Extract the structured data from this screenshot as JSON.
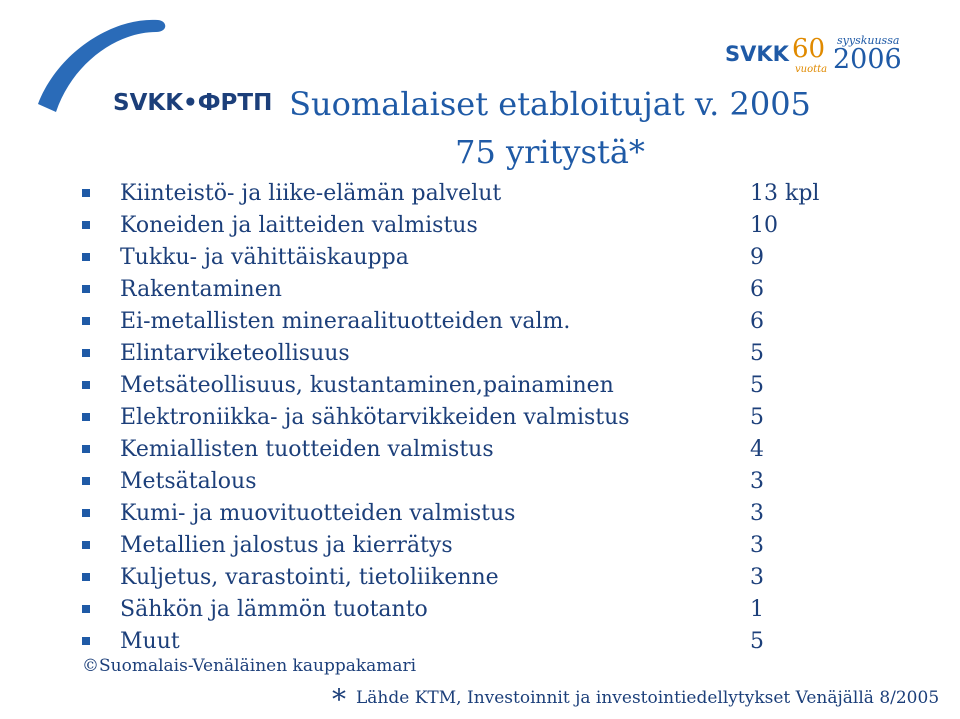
{
  "logos": {
    "left_text": "SVKK•ФРТП",
    "right_svkk": "SVKK",
    "right_60": "60",
    "right_vuotta": "vuotta",
    "right_syyskuussa": "syyskuussa",
    "right_year": "2006"
  },
  "title": {
    "line1": "Suomalaiset etabloitujat v. 2005",
    "line2": "75 yritystä*"
  },
  "items": [
    {
      "label": "Kiinteistö- ja liike-elämän palvelut",
      "count": "13 kpl"
    },
    {
      "label": "Koneiden ja laitteiden valmistus",
      "count": "10"
    },
    {
      "label": "Tukku- ja vähittäiskauppa",
      "count": "9"
    },
    {
      "label": "Rakentaminen",
      "count": "6"
    },
    {
      "label": "Ei-metallisten mineraalituotteiden valm.",
      "count": "6"
    },
    {
      "label": "Elintarviketeollisuus",
      "count": "5"
    },
    {
      "label": "Metsäteollisuus, kustantaminen,painaminen",
      "count": "5"
    },
    {
      "label": "Elektroniikka- ja sähkötarvikkeiden valmistus",
      "count": "5"
    },
    {
      "label": "Kemiallisten tuotteiden valmistus",
      "count": "4"
    },
    {
      "label": "Metsätalous",
      "count": "3"
    },
    {
      "label": "Kumi- ja muovituotteiden valmistus",
      "count": "3"
    },
    {
      "label": "Metallien jalostus ja kierrätys",
      "count": "3"
    },
    {
      "label": "Kuljetus, varastointi, tietoliikenne",
      "count": "3"
    },
    {
      "label": "Sähkön ja lämmön tuotanto",
      "count": "1"
    },
    {
      "label": "Muut",
      "count": "5"
    }
  ],
  "footer": {
    "copyright": "©Suomalais-Venäläinen kauppakamari",
    "source_star": "*",
    "source": "Lähde KTM, Investoinnit ja investointiedellytykset Venäjällä 8/2005"
  },
  "colors": {
    "accent": "#1f5aa6",
    "text": "#1c3f7a",
    "orange": "#e08a00"
  }
}
